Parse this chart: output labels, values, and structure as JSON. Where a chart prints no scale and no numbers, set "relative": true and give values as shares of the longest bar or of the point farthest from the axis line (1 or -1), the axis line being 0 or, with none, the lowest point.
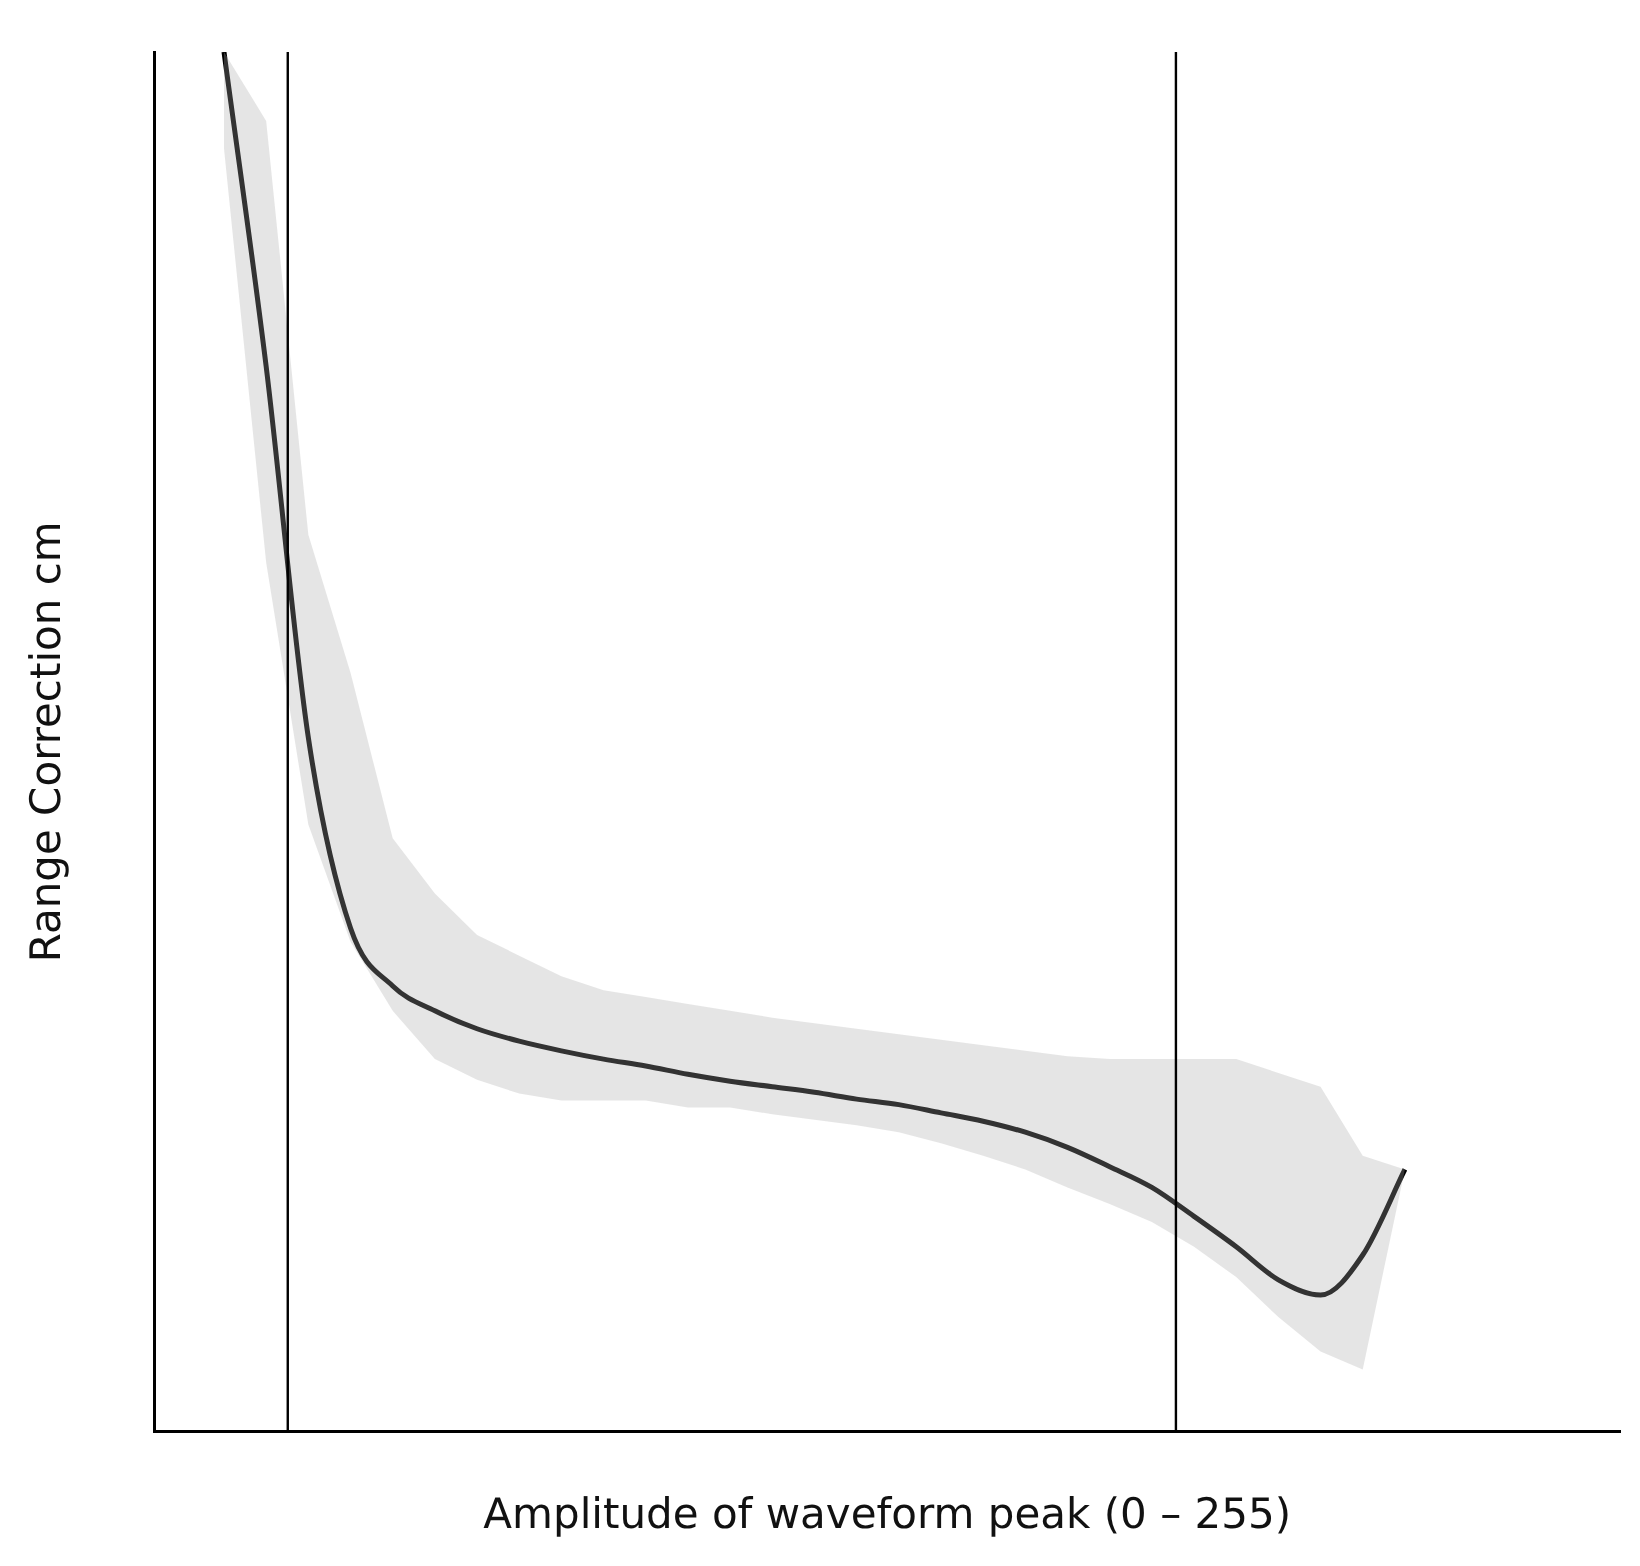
{
  "chart_data": {
    "type": "line",
    "relative": true,
    "xlabel": "Amplitude of waveform peak (0 – 255)",
    "ylabel": "Range Correction cm",
    "marker": "none",
    "line_style": "solid",
    "categories": [
      null,
      null,
      null,
      null,
      null,
      null,
      null,
      null,
      null,
      null,
      null,
      null,
      null,
      null,
      null,
      null,
      null,
      null,
      null,
      null,
      null,
      null,
      null,
      null,
      null,
      null,
      null,
      null,
      null
    ],
    "series": [
      {
        "color": "#000000",
        "values": [
          1.0,
          0.772,
          0.503,
          0.365,
          0.323,
          0.305,
          0.292,
          0.283,
          0.276,
          0.27,
          0.265,
          0.259,
          0.254,
          0.25,
          0.246,
          0.241,
          0.237,
          0.231,
          0.225,
          0.217,
          0.206,
          0.192,
          0.177,
          0.156,
          0.134,
          0.11,
          0.099,
          0.128,
          0.19
        ],
        "upper": [
          1.0,
          0.95,
          0.65,
          0.55,
          0.43,
          0.39,
          0.36,
          0.345,
          0.33,
          0.32,
          0.315,
          0.31,
          0.305,
          0.3,
          0.296,
          0.292,
          0.288,
          0.284,
          0.28,
          0.276,
          0.272,
          0.27,
          0.27,
          0.27,
          0.27,
          0.26,
          0.25,
          0.2,
          0.19
        ],
        "lower": [
          0.93,
          0.63,
          0.44,
          0.355,
          0.305,
          0.27,
          0.255,
          0.245,
          0.24,
          0.24,
          0.24,
          0.235,
          0.235,
          0.23,
          0.226,
          0.222,
          0.217,
          0.209,
          0.2,
          0.19,
          0.177,
          0.165,
          0.152,
          0.134,
          0.112,
          0.083,
          0.058,
          0.045,
          0.19
        ]
      }
    ]
  }
}
